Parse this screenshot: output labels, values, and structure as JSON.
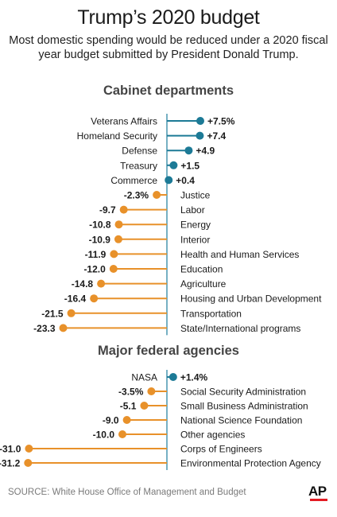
{
  "title": "Trump’s 2020 budget",
  "subtitle": "Most domestic spending would be reduced under a 2020 fiscal year budget submitted by President Donald Trump.",
  "source": "SOURCE: White House Office of Management and Budget",
  "credit": "AP",
  "colors": {
    "positive": "#1c7a96",
    "negative": "#e8912a",
    "axis": "#2d86a3"
  },
  "chart_data": [
    {
      "type": "bar",
      "title": "Cabinet departments",
      "unit": "%",
      "categories": [
        "Veterans Affairs",
        "Homeland Security",
        "Defense",
        "Treasury",
        "Commerce",
        "Justice",
        "Labor",
        "Energy",
        "Interior",
        "Health and Human Services",
        "Education",
        "Agriculture",
        "Housing and Urban Development",
        "Transportation",
        "State/International programs"
      ],
      "values": [
        7.5,
        7.4,
        4.9,
        1.5,
        0.4,
        -2.3,
        -9.7,
        -10.8,
        -10.9,
        -11.9,
        -12.0,
        -14.8,
        -16.4,
        -21.5,
        -23.3
      ],
      "value_labels": [
        "+7.5%",
        "+7.4",
        "+4.9",
        "+1.5",
        "+0.4",
        "-2.3%",
        "-9.7",
        "-10.8",
        "-10.9",
        "-11.9",
        "-12.0",
        "-14.8",
        "-16.4",
        "-21.5",
        "-23.3"
      ]
    },
    {
      "type": "bar",
      "title": "Major federal agencies",
      "unit": "%",
      "categories": [
        "NASA",
        "Social Security Administration",
        "Small Business Administration",
        "National Science Foundation",
        "Other agencies",
        "Corps of Engineers",
        "Environmental Protection Agency"
      ],
      "values": [
        1.4,
        -3.5,
        -5.1,
        -9.0,
        -10.0,
        -31.0,
        -31.2
      ],
      "value_labels": [
        "+1.4%",
        "-3.5%",
        "-5.1",
        "-9.0",
        "-10.0",
        "-31.0",
        "-31.2"
      ]
    }
  ]
}
